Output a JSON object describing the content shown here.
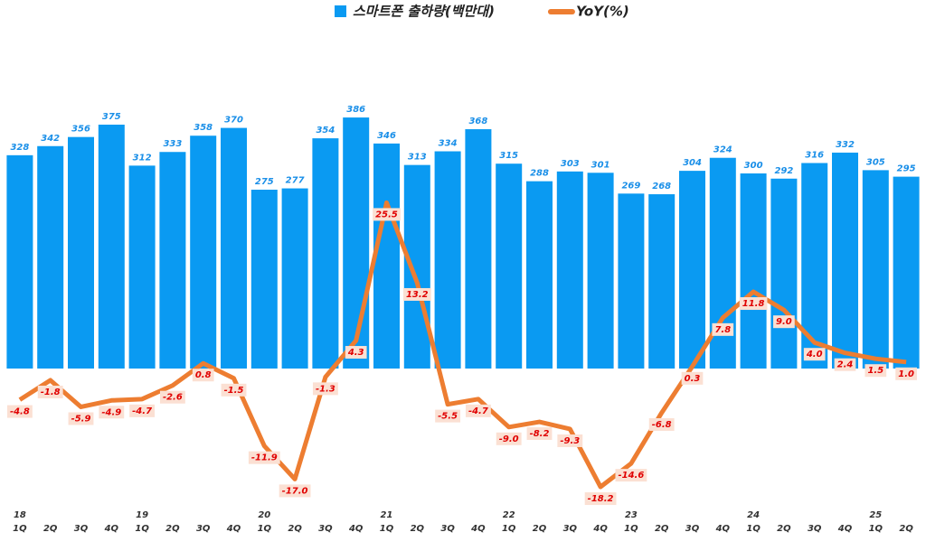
{
  "chart_data": {
    "type": "combo",
    "categories": [
      "1Q",
      "2Q",
      "3Q",
      "4Q",
      "1Q",
      "2Q",
      "3Q",
      "4Q",
      "1Q",
      "2Q",
      "3Q",
      "4Q",
      "1Q",
      "2Q",
      "3Q",
      "4Q",
      "1Q",
      "2Q",
      "3Q",
      "4Q",
      "1Q",
      "2Q",
      "3Q",
      "4Q",
      "1Q",
      "2Q",
      "3Q",
      "4Q",
      "1Q",
      "2Q"
    ],
    "x_year_labels": [
      "18",
      null,
      null,
      null,
      "19",
      null,
      null,
      null,
      "20",
      null,
      null,
      null,
      "21",
      null,
      null,
      null,
      "22",
      null,
      null,
      null,
      "23",
      null,
      null,
      null,
      "24",
      null,
      null,
      null,
      "25",
      null
    ],
    "ylim": [
      -200,
      550
    ],
    "y2lim": [
      -20,
      55
    ],
    "legend": "top",
    "series": [
      {
        "name": "스마트폰 출하량(백만대)",
        "type": "bar",
        "color": "#0a9af2",
        "values": [
          328,
          342,
          356,
          375,
          312,
          333,
          358,
          370,
          275,
          277,
          354,
          386,
          346,
          313,
          334,
          368,
          315,
          288,
          303,
          301,
          269,
          268,
          304,
          324,
          300,
          292,
          316,
          332,
          305,
          295
        ]
      },
      {
        "name": "YoY(%)",
        "type": "line",
        "axis": "y2",
        "color": "#ed7d31",
        "values": [
          -4.8,
          -1.8,
          -5.9,
          -4.9,
          -4.7,
          -2.6,
          0.8,
          -1.5,
          -11.9,
          -17.0,
          -1.3,
          4.3,
          25.5,
          13.2,
          -5.5,
          -4.7,
          -9.0,
          -8.2,
          -9.3,
          -18.2,
          -14.6,
          -6.8,
          0.3,
          7.8,
          11.8,
          9.0,
          4.0,
          2.4,
          1.5,
          1.0
        ],
        "value_labels": [
          "-4.8",
          "-1.8",
          "-5.9",
          "-4.9",
          "-4.7",
          "-2.6",
          "0.8",
          "-1.5",
          "-11.9",
          "-17.0",
          "-1.3",
          "4.3",
          "25.5",
          "13.2",
          "-5.5",
          "-4.7",
          "-9.0",
          "-8.2",
          "-9.3",
          "-18.2",
          "-14.6",
          "-6.8",
          "0.3",
          "7.8",
          "11.8",
          "9.0",
          "4.0",
          "2.4",
          "1.5",
          "1.0"
        ]
      }
    ]
  }
}
